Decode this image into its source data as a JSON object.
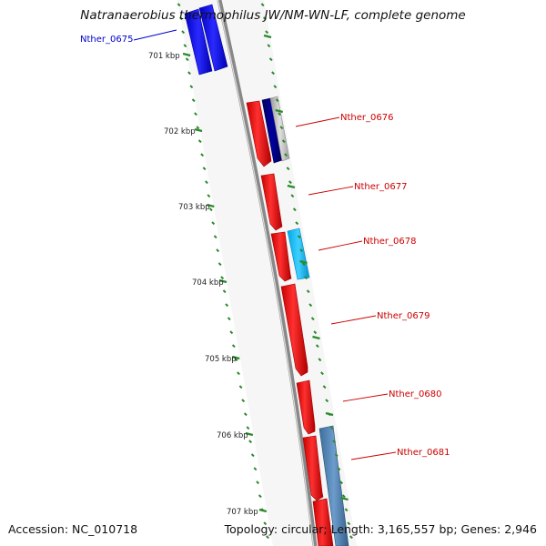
{
  "title": "Natranaerobius thermophilus JW/NM-WN-LF, complete genome",
  "accession": "Accession: NC_010718",
  "summary": "Topology: circular; Length: 3,165,557 bp; Genes: 2,946",
  "colors": {
    "backbone": "#888888",
    "tick": "#2a8a2a",
    "forward_gene": "#ff0000",
    "reverse_gene": "#0000ff",
    "label_forward": "#cc0000",
    "label_reverse": "#0000cc"
  },
  "ticks": [
    "701 kbp",
    "702 kbp",
    "703 kbp",
    "704 kbp",
    "705 kbp",
    "706 kbp",
    "707 kbp"
  ],
  "gene_labels": [
    {
      "name": "Nther_0675",
      "color": "#0000cc"
    },
    {
      "name": "Nther_0676",
      "color": "#cc0000"
    },
    {
      "name": "Nther_0677",
      "color": "#cc0000"
    },
    {
      "name": "Nther_0678",
      "color": "#cc0000"
    },
    {
      "name": "Nther_0679",
      "color": "#cc0000"
    },
    {
      "name": "Nther_0680",
      "color": "#cc0000"
    },
    {
      "name": "Nther_0681",
      "color": "#cc0000"
    }
  ]
}
